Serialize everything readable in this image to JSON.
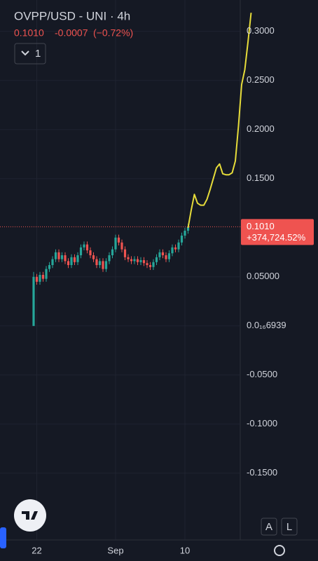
{
  "chart_data": {
    "type": "candlestick",
    "title": "OVPP/USD - UNI · 4h",
    "price": "0.1010",
    "change": "-0.0007",
    "change_percent": "(−0.72%)",
    "indicator_count": "1",
    "categories": [
      null,
      "22",
      null,
      null,
      null,
      null,
      null,
      null,
      null,
      null,
      null,
      null,
      null,
      null,
      null,
      null,
      null,
      null,
      null,
      null,
      null,
      null,
      null,
      null,
      null,
      null,
      "Sep",
      null,
      null,
      null,
      null,
      null,
      null,
      null,
      null,
      null,
      null,
      null,
      null,
      null,
      null,
      null,
      null,
      null,
      null,
      null,
      null,
      null,
      "10",
      null,
      null,
      null,
      null,
      null,
      null,
      null,
      null,
      null,
      null,
      null,
      null,
      null,
      null,
      null,
      null,
      null,
      null,
      null,
      null,
      null
    ],
    "open": [
      0.0,
      0.05,
      0.045,
      0.052,
      0.048,
      0.058,
      0.062,
      0.068,
      0.075,
      0.068,
      0.072,
      0.066,
      0.062,
      0.07,
      0.065,
      0.072,
      0.08,
      0.083,
      0.077,
      0.072,
      0.068,
      0.062,
      0.066,
      0.058,
      0.066,
      0.072,
      0.078,
      0.09,
      0.085,
      0.078,
      0.07,
      0.068,
      0.066,
      0.068,
      0.065,
      0.067,
      0.064,
      0.062,
      0.06,
      0.065,
      0.07,
      0.075,
      0.072,
      0.068,
      0.074,
      0.08,
      0.078,
      0.085,
      0.092,
      0.097,
      null,
      null,
      null,
      null,
      null,
      null,
      null,
      null,
      null,
      null,
      null,
      null,
      null,
      null,
      null,
      null,
      null,
      null,
      null,
      null
    ],
    "high": [
      0.055,
      0.053,
      0.055,
      0.055,
      0.061,
      0.065,
      0.071,
      0.078,
      0.078,
      0.075,
      0.075,
      0.069,
      0.073,
      0.073,
      0.075,
      0.083,
      0.086,
      0.086,
      0.08,
      0.075,
      0.071,
      0.069,
      0.069,
      0.069,
      0.075,
      0.081,
      0.093,
      0.093,
      0.088,
      0.081,
      0.073,
      0.071,
      0.071,
      0.071,
      0.07,
      0.07,
      0.067,
      0.065,
      0.068,
      0.073,
      0.078,
      0.078,
      0.075,
      0.077,
      0.083,
      0.083,
      0.088,
      0.095,
      0.1,
      0.104,
      null,
      null,
      null,
      null,
      null,
      null,
      null,
      null,
      null,
      null,
      null,
      null,
      null,
      null,
      null,
      null,
      null,
      null,
      null,
      null
    ],
    "low": [
      0.0,
      0.042,
      0.042,
      0.045,
      0.045,
      0.055,
      0.059,
      0.065,
      0.065,
      0.065,
      0.063,
      0.059,
      0.059,
      0.062,
      0.062,
      0.069,
      0.077,
      0.074,
      0.069,
      0.065,
      0.059,
      0.059,
      0.055,
      0.055,
      0.063,
      0.069,
      0.075,
      0.082,
      0.075,
      0.067,
      0.065,
      0.063,
      0.063,
      0.062,
      0.062,
      0.061,
      0.059,
      0.057,
      0.057,
      0.062,
      0.067,
      0.069,
      0.065,
      0.065,
      0.071,
      0.075,
      0.075,
      0.082,
      0.089,
      0.094,
      null,
      null,
      null,
      null,
      null,
      null,
      null,
      null,
      null,
      null,
      null,
      null,
      null,
      null,
      null,
      null,
      null,
      null,
      null,
      null
    ],
    "close": [
      0.05,
      0.045,
      0.052,
      0.048,
      0.058,
      0.062,
      0.068,
      0.075,
      0.068,
      0.072,
      0.066,
      0.062,
      0.07,
      0.065,
      0.072,
      0.08,
      0.083,
      0.077,
      0.072,
      0.068,
      0.062,
      0.066,
      0.058,
      0.066,
      0.072,
      0.078,
      0.09,
      0.085,
      0.078,
      0.07,
      0.068,
      0.066,
      0.068,
      0.065,
      0.067,
      0.064,
      0.062,
      0.06,
      0.065,
      0.07,
      0.075,
      0.072,
      0.068,
      0.074,
      0.08,
      0.078,
      0.085,
      0.092,
      0.097,
      0.101,
      null,
      null,
      null,
      null,
      null,
      null,
      null,
      null,
      null,
      null,
      null,
      null,
      null,
      null,
      null,
      null,
      null,
      null,
      null,
      null
    ],
    "up_color": "#26a69a",
    "down_color": "#ef5350",
    "drawing": {
      "color": "#e6dc3a",
      "values": [
        null,
        null,
        null,
        null,
        null,
        null,
        null,
        null,
        null,
        null,
        null,
        null,
        null,
        null,
        null,
        null,
        null,
        null,
        null,
        null,
        null,
        null,
        null,
        null,
        null,
        null,
        null,
        null,
        null,
        null,
        null,
        null,
        null,
        null,
        null,
        null,
        null,
        null,
        null,
        null,
        null,
        null,
        null,
        null,
        null,
        null,
        null,
        null,
        null,
        0.1,
        0.118,
        0.134,
        0.125,
        0.123,
        0.123,
        0.129,
        0.139,
        0.15,
        0.161,
        0.165,
        0.155,
        0.154,
        0.154,
        0.156,
        0.168,
        0.204,
        0.246,
        0.261,
        0.289,
        0.319
      ]
    },
    "last_price": {
      "value": 0.101,
      "label": "0.1010"
    },
    "last_change": "+374,724.52%",
    "ylim": [
      -0.218,
      0.332
    ],
    "yticks": [
      {
        "value": 0.3,
        "label": "0.3000"
      },
      {
        "value": 0.25,
        "label": "0.2500"
      },
      {
        "value": 0.2,
        "label": "0.2000"
      },
      {
        "value": 0.15,
        "label": "0.1500"
      },
      {
        "value": 0.05,
        "label": "0.05000"
      },
      {
        "value": 6.939e-17,
        "label": "0.0₁₆6939"
      },
      {
        "value": -0.05,
        "label": "-0.0500"
      },
      {
        "value": -0.1,
        "label": "-0.1000"
      },
      {
        "value": -0.15,
        "label": "-0.1500"
      }
    ],
    "grid": true,
    "buttons": [
      "A",
      "L"
    ]
  }
}
